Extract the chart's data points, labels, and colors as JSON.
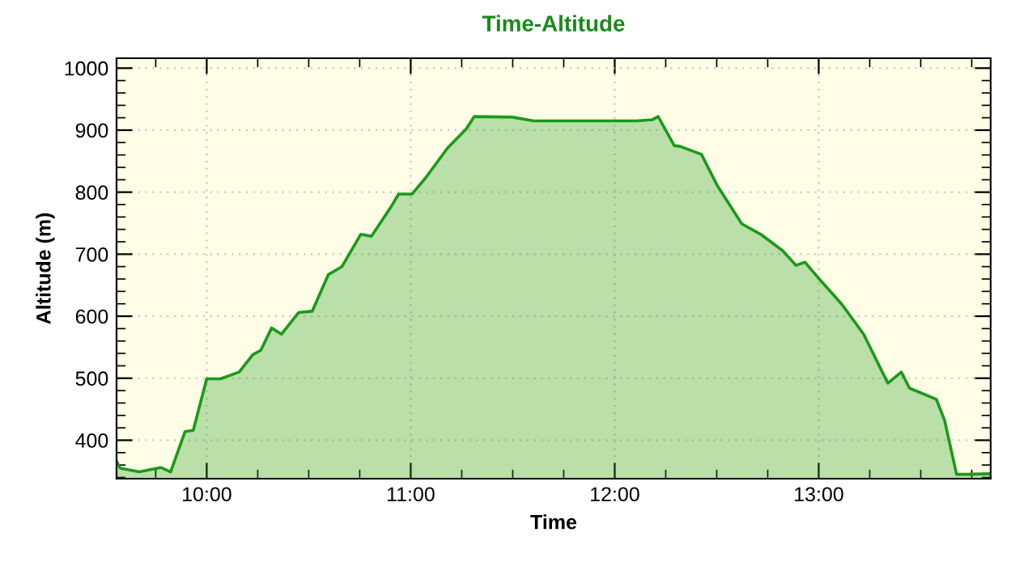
{
  "chart_data": {
    "type": "area",
    "title": "Time-Altitude",
    "xlabel": "Time",
    "ylabel": "Altitude (m)",
    "x": [
      9.558,
      9.576,
      9.669,
      9.775,
      9.823,
      9.894,
      9.934,
      10.0,
      10.067,
      10.159,
      10.226,
      10.265,
      10.318,
      10.366,
      10.451,
      10.517,
      10.596,
      10.663,
      10.755,
      10.808,
      10.901,
      10.941,
      11.007,
      11.073,
      11.18,
      11.272,
      11.312,
      11.498,
      11.603,
      12.107,
      12.186,
      12.213,
      12.292,
      12.319,
      12.425,
      12.504,
      12.623,
      12.716,
      12.822,
      12.889,
      12.933,
      13.008,
      13.114,
      13.22,
      13.339,
      13.405,
      13.445,
      13.577,
      13.617,
      13.676,
      13.723,
      13.843
    ],
    "series": [
      {
        "color": "#1a9a1a",
        "values": [
          366,
          355,
          349,
          356,
          349,
          414,
          416,
          499,
          499,
          510,
          538,
          545,
          581,
          571,
          606,
          608,
          667,
          680,
          732,
          729,
          775,
          797,
          797,
          823,
          871,
          902,
          922,
          921,
          915,
          915,
          917,
          922,
          875,
          874,
          861,
          810,
          749,
          732,
          706,
          682,
          687,
          658,
          619,
          571,
          492,
          510,
          484,
          466,
          432,
          345,
          345,
          346
        ]
      }
    ],
    "xlim": [
      9.558,
      13.843
    ],
    "ylim": [
      338,
      1016
    ],
    "xticks": [
      {
        "value": 9.75,
        "label": null
      },
      {
        "value": 10,
        "label": "10:00"
      },
      {
        "value": 10.25,
        "label": null
      },
      {
        "value": 10.5,
        "label": null
      },
      {
        "value": 10.75,
        "label": null
      },
      {
        "value": 11,
        "label": "11:00"
      },
      {
        "value": 11.25,
        "label": null
      },
      {
        "value": 11.5,
        "label": null
      },
      {
        "value": 11.75,
        "label": null
      },
      {
        "value": 12,
        "label": "12:00"
      },
      {
        "value": 12.25,
        "label": null
      },
      {
        "value": 12.5,
        "label": null
      },
      {
        "value": 12.75,
        "label": null
      },
      {
        "value": 13,
        "label": "13:00"
      },
      {
        "value": 13.25,
        "label": null
      },
      {
        "value": 13.5,
        "label": null
      },
      {
        "value": 13.75,
        "label": null
      }
    ],
    "yticks": [
      {
        "value": 340,
        "label": null
      },
      {
        "value": 360,
        "label": null
      },
      {
        "value": 380,
        "label": null
      },
      400,
      {
        "value": 420,
        "label": null
      },
      {
        "value": 440,
        "label": null
      },
      {
        "value": 460,
        "label": null
      },
      {
        "value": 480,
        "label": null
      },
      500,
      {
        "value": 520,
        "label": null
      },
      {
        "value": 540,
        "label": null
      },
      {
        "value": 560,
        "label": null
      },
      {
        "value": 580,
        "label": null
      },
      600,
      {
        "value": 620,
        "label": null
      },
      {
        "value": 640,
        "label": null
      },
      {
        "value": 660,
        "label": null
      },
      {
        "value": 680,
        "label": null
      },
      700,
      {
        "value": 720,
        "label": null
      },
      {
        "value": 740,
        "label": null
      },
      {
        "value": 760,
        "label": null
      },
      {
        "value": 780,
        "label": null
      },
      800,
      {
        "value": 820,
        "label": null
      },
      {
        "value": 840,
        "label": null
      },
      {
        "value": 860,
        "label": null
      },
      {
        "value": 880,
        "label": null
      },
      900,
      {
        "value": 920,
        "label": null
      },
      {
        "value": 940,
        "label": null
      },
      {
        "value": 960,
        "label": null
      },
      {
        "value": 980,
        "label": null
      },
      1000
    ],
    "grid": true
  }
}
